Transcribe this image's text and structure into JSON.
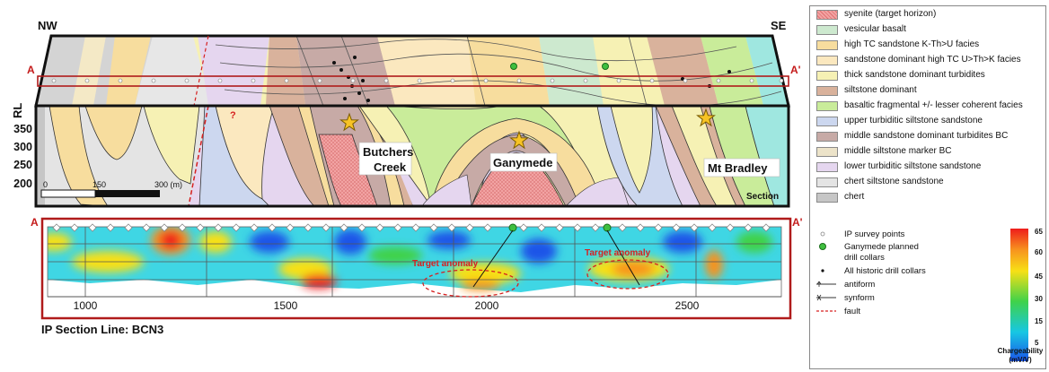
{
  "section": {
    "nw_label": "NW",
    "se_label": "SE",
    "line_start": "A",
    "line_end": "A'",
    "rl_label": "RL",
    "rl_ticks": [
      "350",
      "300",
      "250",
      "200"
    ],
    "fault_query": "?",
    "scale_ticks": [
      "0",
      "150",
      "300 (m)"
    ],
    "section_tag": "Section",
    "places": [
      {
        "name_line1": "Butchers",
        "name_line2": "Creek"
      },
      {
        "name_line1": "Ganymede",
        "name_line2": ""
      },
      {
        "name_line1": "Mt Bradley",
        "name_line2": ""
      }
    ]
  },
  "ip_section": {
    "line_start": "A",
    "line_end": "A'",
    "x_ticks": [
      "1000",
      "1500",
      "2000",
      "2500"
    ],
    "anomaly_labels": [
      "Target anomaly",
      "Target anomaly"
    ],
    "caption": "IP Section Line: BCN3"
  },
  "legend": {
    "units": [
      {
        "label": "syenite (target horizon)",
        "color": "#f2a3a3",
        "pattern": "dots"
      },
      {
        "label": "vesicular basalt",
        "color": "#cde9cf"
      },
      {
        "label": "high TC sandstone K-Th>U facies",
        "color": "#f7dd9e"
      },
      {
        "label": "sandstone dominant high TC U>Th>K facies",
        "color": "#fbe8bf"
      },
      {
        "label": "thick sandstone dominant turbidites",
        "color": "#f6f1b4"
      },
      {
        "label": "siltstone dominant",
        "color": "#d9b29c"
      },
      {
        "label": "basaltic fragmental +/- lesser coherent facies",
        "color": "#c9ec9a"
      },
      {
        "label": "upper turbiditic siltstone sandstone",
        "color": "#ccd7ef"
      },
      {
        "label": "middle sandstone dominant turbidites BC",
        "color": "#c7aaa6"
      },
      {
        "label": "middle siltstone marker BC",
        "color": "#ece3c9"
      },
      {
        "label": "lower turbiditic siltstone sandstone",
        "color": "#e5d6ef"
      },
      {
        "label": "chert siltstone sandstone",
        "color": "#e4e4e4"
      },
      {
        "label": "chert",
        "color": "#c6c6c6"
      }
    ],
    "symbols": [
      {
        "icon": "ip-point-icon",
        "label": "IP survey points"
      },
      {
        "icon": "planned-collar-icon",
        "label": "Ganymede planned"
      },
      {
        "icon": "",
        "label": "drill collars"
      },
      {
        "icon": "historic-collar-icon",
        "label": "All historic drill collars"
      },
      {
        "icon": "antiform-icon",
        "label": "antiform"
      },
      {
        "icon": "synform-icon",
        "label": "synform"
      },
      {
        "icon": "fault-icon",
        "label": "fault"
      }
    ],
    "colorbar": {
      "ticks": [
        "65",
        "60",
        "45",
        "30",
        "15",
        "5"
      ],
      "title": "Chargeability",
      "units": "(mV/V)",
      "colors": [
        "#ee1c1c",
        "#f7931e",
        "#f7e016",
        "#3fd24a",
        "#17c7e3",
        "#1a54e8"
      ]
    }
  }
}
